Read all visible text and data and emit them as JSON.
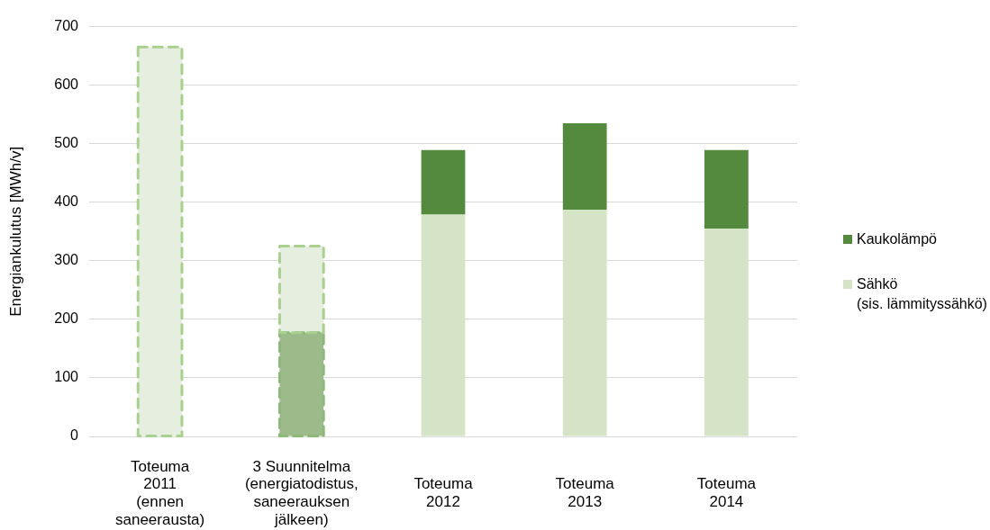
{
  "chart_data": {
    "type": "bar",
    "stacked": true,
    "categories": [
      "Toteuma\n2011\n(ennen\nsaneerausta)",
      "3 Suunnitelma\n(energiatodistus,\nsaneerauksen\njälkeen)",
      "Toteuma\n2012",
      "Toteuma\n2013",
      "Toteuma\n2014"
    ],
    "series": [
      {
        "color": "#8cb878",
        "colors": [
          null,
          "#9dba8b",
          null,
          null,
          null
        ],
        "values": [
          null,
          177,
          null,
          null,
          null
        ],
        "line_style": "dashed"
      },
      {
        "color": "#a9d08e",
        "colors": [
          "#e6efdf",
          "#e6efdf",
          null,
          null,
          null
        ],
        "values": [
          665,
          148,
          null,
          null,
          null
        ],
        "line_style": "dashed"
      },
      {
        "name": "Sähkö\n(sis. lämmityssähkö)",
        "color": "#d5e4c6",
        "values": [
          null,
          null,
          379,
          387,
          355
        ]
      },
      {
        "name": "Kaukolämpö",
        "color": "#538a3e",
        "values": [
          null,
          null,
          110,
          148,
          134
        ]
      }
    ],
    "ylabel": "Energiankulutus [MWh/v]",
    "ylim": [
      0,
      700
    ],
    "yticks": [
      0,
      100,
      200,
      300,
      400,
      500,
      600,
      700
    ],
    "grid": "y",
    "legend": "right"
  }
}
